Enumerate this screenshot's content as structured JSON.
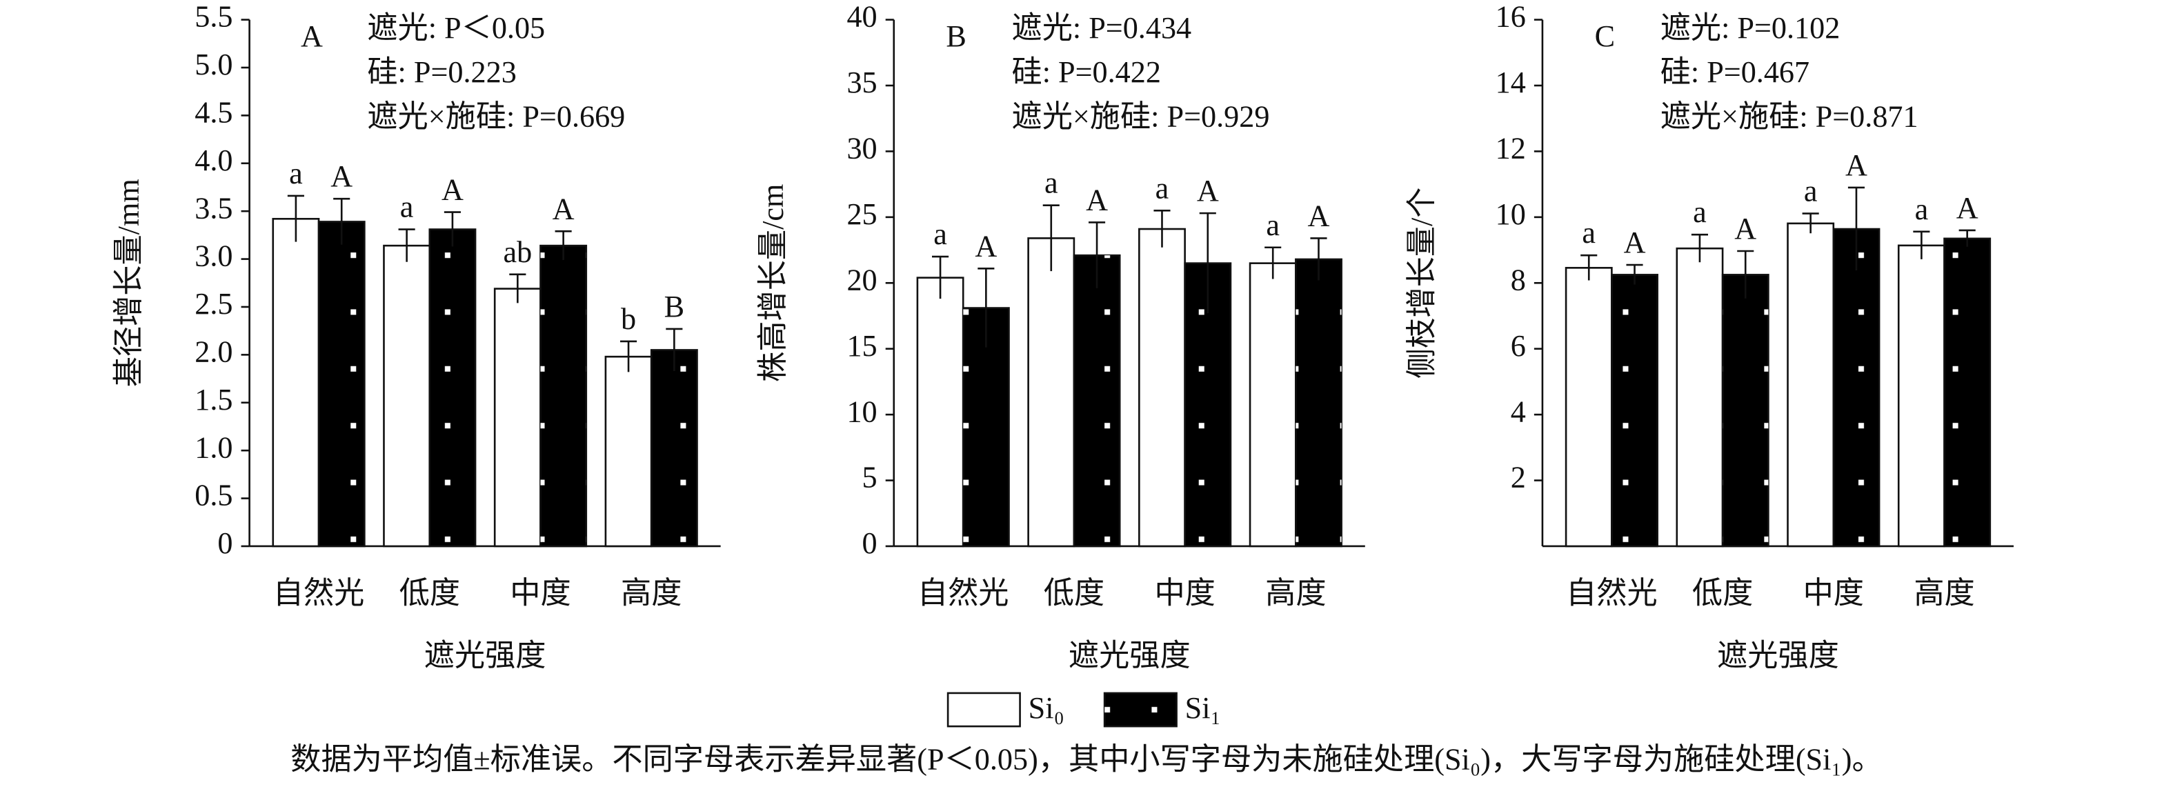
{
  "chart_data": [
    {
      "type": "bar",
      "panel": "A",
      "annotations": [
        "遮光: P＜0.05",
        "硅: P=0.223",
        "遮光×施硅: P=0.669"
      ],
      "ylabel": "基径增长量/mm",
      "xlabel": "遮光强度",
      "categories": [
        "自然光",
        "低度",
        "中度",
        "高度"
      ],
      "ylim": [
        0,
        5.5
      ],
      "yticks": [
        0,
        {
          "value": 0.5,
          "label": "0.5"
        },
        {
          "value": 1,
          "label": "1.0"
        },
        {
          "value": 1.5,
          "label": "1.5"
        },
        {
          "value": 2,
          "label": "2.0"
        },
        {
          "value": 2.5,
          "label": "2.5"
        },
        {
          "value": 3,
          "label": "3.0"
        },
        {
          "value": 3.5,
          "label": "3.5"
        },
        {
          "value": 4,
          "label": "4.0"
        },
        {
          "value": 4.5,
          "label": "4.5"
        },
        {
          "value": 5,
          "label": "5.0"
        },
        {
          "value": 5.5,
          "label": "5.5"
        }
      ],
      "series": [
        {
          "name": "Si₀",
          "color": "#ffffff",
          "values": [
            3.42,
            3.14,
            2.69,
            1.98
          ],
          "errors": [
            0.24,
            0.17,
            0.15,
            0.16
          ],
          "letters": [
            "a",
            "a",
            "ab",
            "b"
          ]
        },
        {
          "name": "Si₁",
          "color": "#000000",
          "values": [
            3.39,
            3.31,
            3.14,
            2.05
          ],
          "errors": [
            0.24,
            0.18,
            0.15,
            0.22
          ],
          "letters": [
            "A",
            "A",
            "A",
            "B"
          ]
        }
      ]
    },
    {
      "type": "bar",
      "panel": "B",
      "annotations": [
        "遮光: P=0.434",
        "硅: P=0.422",
        "遮光×施硅: P=0.929"
      ],
      "ylabel": "株高增长量/cm",
      "xlabel": "遮光强度",
      "categories": [
        "自然光",
        "低度",
        "中度",
        "高度"
      ],
      "ylim": [
        0,
        40
      ],
      "yticks": [
        0,
        5,
        10,
        15,
        20,
        25,
        30,
        35,
        40
      ],
      "series": [
        {
          "name": "Si₀",
          "color": "#ffffff",
          "values": [
            20.4,
            23.4,
            24.1,
            21.5
          ],
          "errors": [
            1.6,
            2.5,
            1.4,
            1.2
          ],
          "letters": [
            "a",
            "a",
            "a",
            "a"
          ]
        },
        {
          "name": "Si₁",
          "color": "#000000",
          "values": [
            18.1,
            22.1,
            21.5,
            21.8
          ],
          "errors": [
            3.0,
            2.5,
            3.8,
            1.6
          ],
          "letters": [
            "A",
            "A",
            "A",
            "A"
          ]
        }
      ]
    },
    {
      "type": "bar",
      "panel": "C",
      "annotations": [
        "遮光: P=0.102",
        "硅: P=0.467",
        "遮光×施硅: P=0.871"
      ],
      "ylabel": "侧枝增长量/个",
      "xlabel": "遮光强度",
      "categories": [
        "自然光",
        "低度",
        "中度",
        "高度"
      ],
      "ylim": [
        0,
        16
      ],
      "yticks": [
        2,
        4,
        6,
        8,
        10,
        12,
        14,
        16
      ],
      "series": [
        {
          "name": "Si₀",
          "color": "#ffffff",
          "values": [
            8.46,
            9.05,
            9.81,
            9.14
          ],
          "errors": [
            0.38,
            0.42,
            0.3,
            0.42
          ],
          "letters": [
            "a",
            "a",
            "a",
            "a"
          ]
        },
        {
          "name": "Si₁",
          "color": "#000000",
          "values": [
            8.25,
            8.25,
            9.64,
            9.35
          ],
          "errors": [
            0.3,
            0.72,
            1.26,
            0.25
          ],
          "letters": [
            "A",
            "A",
            "A",
            "A"
          ]
        }
      ]
    }
  ],
  "caption": "数据为平均值±标准误。不同字母表示差异显著(P＜0.05)，其中小写字母为未施硅处理(Si₀)，大写字母为施硅处理(Si₁)。"
}
